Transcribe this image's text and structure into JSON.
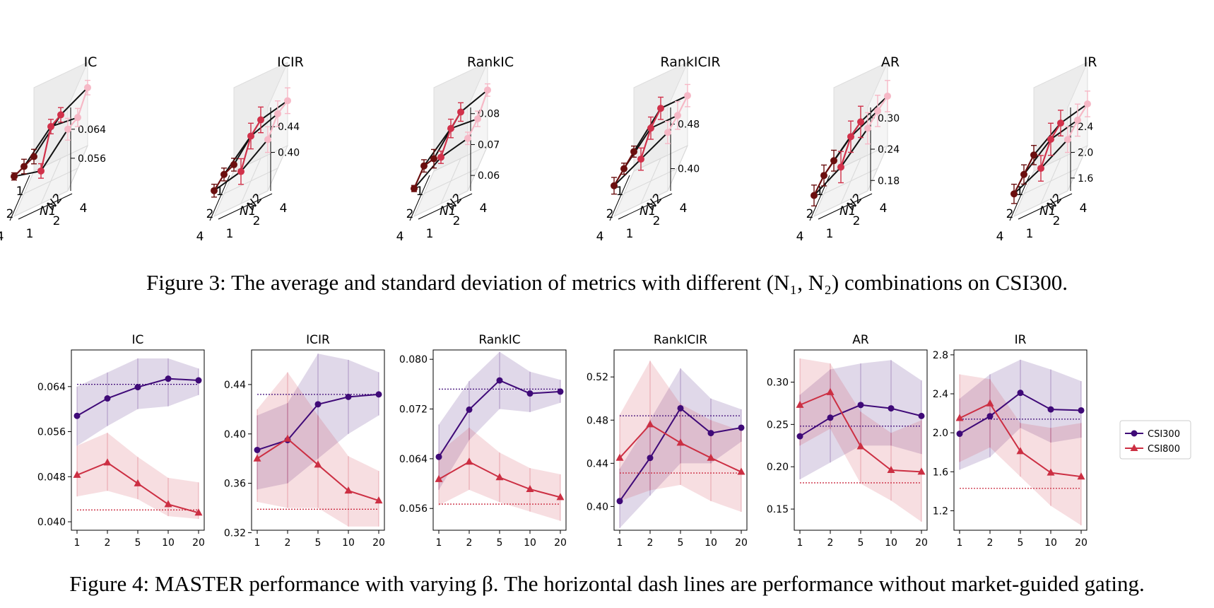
{
  "figure3": {
    "caption": "Figure 3: The average and standard deviation of metrics with different (N₁, N₂) combinations on CSI300.",
    "x_axis_label": "N1",
    "y_axis_label": "N2",
    "x_ticks": [
      "1",
      "2",
      "4"
    ],
    "y_ticks": [
      "1",
      "2",
      "4"
    ],
    "colors_by_N2": [
      "#6b0f0f",
      "#d1314a",
      "#f6b8c6"
    ]
  },
  "figure4": {
    "caption": "Figure 4: MASTER performance with varying β. The horizontal dash lines are performance without market-guided gating.",
    "legend": [
      {
        "name": "CSI300",
        "color": "#3f0a78",
        "marker": "circle"
      },
      {
        "name": "CSI800",
        "color": "#cc2f43",
        "marker": "triangle"
      }
    ]
  },
  "chart_data": [
    {
      "type": "scatter",
      "figure": "3",
      "title": "IC",
      "x_label": "N1",
      "y_label": "N2",
      "z_ticks": [
        "0.064",
        "0.056"
      ],
      "zlim": [
        0.047,
        0.07
      ],
      "points": [
        {
          "N1": 1,
          "N2": 1,
          "mean": 0.051,
          "std": 0.002
        },
        {
          "N1": 2,
          "N2": 1,
          "mean": 0.0545,
          "std": 0.002
        },
        {
          "N1": 4,
          "N2": 1,
          "mean": 0.058,
          "std": 0.001
        },
        {
          "N1": 1,
          "N2": 2,
          "mean": 0.059,
          "std": 0.002
        },
        {
          "N1": 2,
          "N2": 2,
          "mean": 0.062,
          "std": 0.002
        },
        {
          "N1": 4,
          "N2": 2,
          "mean": 0.056,
          "std": 0.002
        },
        {
          "N1": 1,
          "N2": 4,
          "mean": 0.063,
          "std": 0.002
        },
        {
          "N1": 2,
          "N2": 4,
          "mean": 0.061,
          "std": 0.0025
        },
        {
          "N1": 4,
          "N2": 4,
          "mean": 0.064,
          "std": 0.003
        }
      ]
    },
    {
      "type": "scatter",
      "figure": "3",
      "title": "ICIR",
      "x_label": "N1",
      "y_label": "N2",
      "z_ticks": [
        "0.44",
        "0.40"
      ],
      "zlim": [
        0.34,
        0.47
      ],
      "points": [
        {
          "N1": 1,
          "N2": 1,
          "mean": 0.35,
          "std": 0.01
        },
        {
          "N1": 2,
          "N2": 1,
          "mean": 0.37,
          "std": 0.01
        },
        {
          "N1": 4,
          "N2": 1,
          "mean": 0.38,
          "std": 0.01
        },
        {
          "N1": 1,
          "N2": 2,
          "mean": 0.4,
          "std": 0.02
        },
        {
          "N1": 2,
          "N2": 2,
          "mean": 0.41,
          "std": 0.02
        },
        {
          "N1": 4,
          "N2": 2,
          "mean": 0.39,
          "std": 0.02
        },
        {
          "N1": 1,
          "N2": 4,
          "mean": 0.41,
          "std": 0.02
        },
        {
          "N1": 2,
          "N2": 4,
          "mean": 0.425,
          "std": 0.02
        },
        {
          "N1": 4,
          "N2": 4,
          "mean": 0.42,
          "std": 0.02
        }
      ]
    },
    {
      "type": "scatter",
      "figure": "3",
      "title": "RankIC",
      "x_label": "N1",
      "y_label": "N2",
      "z_ticks": [
        "0.08",
        "0.07",
        "0.06"
      ],
      "zlim": [
        0.055,
        0.082
      ],
      "points": [
        {
          "N1": 1,
          "N2": 1,
          "mean": 0.059,
          "std": 0.003
        },
        {
          "N1": 2,
          "N2": 1,
          "mean": 0.064,
          "std": 0.002
        },
        {
          "N1": 4,
          "N2": 1,
          "mean": 0.064,
          "std": 0.001
        },
        {
          "N1": 1,
          "N2": 2,
          "mean": 0.07,
          "std": 0.003
        },
        {
          "N1": 2,
          "N2": 2,
          "mean": 0.072,
          "std": 0.003
        },
        {
          "N1": 4,
          "N2": 2,
          "mean": 0.07,
          "std": 0.002
        },
        {
          "N1": 1,
          "N2": 4,
          "mean": 0.073,
          "std": 0.002
        },
        {
          "N1": 2,
          "N2": 4,
          "mean": 0.071,
          "std": 0.0025
        },
        {
          "N1": 4,
          "N2": 4,
          "mean": 0.072,
          "std": 0.002
        }
      ]
    },
    {
      "type": "scatter",
      "figure": "3",
      "title": "RankICIR",
      "x_label": "N1",
      "y_label": "N2",
      "z_ticks": [
        "0.48",
        "0.40"
      ],
      "zlim": [
        0.36,
        0.51
      ],
      "points": [
        {
          "N1": 1,
          "N2": 1,
          "mean": 0.395,
          "std": 0.01
        },
        {
          "N1": 2,
          "N2": 1,
          "mean": 0.405,
          "std": 0.01
        },
        {
          "N1": 4,
          "N2": 1,
          "mean": 0.415,
          "std": 0.015
        },
        {
          "N1": 1,
          "N2": 2,
          "mean": 0.45,
          "std": 0.02
        },
        {
          "N1": 2,
          "N2": 2,
          "mean": 0.455,
          "std": 0.02
        },
        {
          "N1": 4,
          "N2": 2,
          "mean": 0.44,
          "std": 0.02
        },
        {
          "N1": 1,
          "N2": 4,
          "mean": 0.45,
          "std": 0.02
        },
        {
          "N1": 2,
          "N2": 4,
          "mean": 0.455,
          "std": 0.025
        },
        {
          "N1": 4,
          "N2": 4,
          "mean": 0.465,
          "std": 0.02
        }
      ]
    },
    {
      "type": "scatter",
      "figure": "3",
      "title": "AR",
      "x_label": "N1",
      "y_label": "N2",
      "z_ticks": [
        "0.30",
        "0.24",
        "0.18"
      ],
      "zlim": [
        0.16,
        0.32
      ],
      "points": [
        {
          "N1": 1,
          "N2": 1,
          "mean": 0.18,
          "std": 0.02
        },
        {
          "N1": 2,
          "N2": 1,
          "mean": 0.195,
          "std": 0.02
        },
        {
          "N1": 4,
          "N2": 1,
          "mean": 0.2,
          "std": 0.02
        },
        {
          "N1": 1,
          "N2": 2,
          "mean": 0.23,
          "std": 0.03
        },
        {
          "N1": 2,
          "N2": 2,
          "mean": 0.245,
          "std": 0.03
        },
        {
          "N1": 4,
          "N2": 2,
          "mean": 0.23,
          "std": 0.03
        },
        {
          "N1": 1,
          "N2": 4,
          "mean": 0.255,
          "std": 0.03
        },
        {
          "N1": 2,
          "N2": 4,
          "mean": 0.27,
          "std": 0.03
        },
        {
          "N1": 4,
          "N2": 4,
          "mean": 0.28,
          "std": 0.03
        }
      ]
    },
    {
      "type": "scatter",
      "figure": "3",
      "title": "IR",
      "x_label": "N1",
      "y_label": "N2",
      "z_ticks": [
        "2.4",
        "2.0",
        "1.6"
      ],
      "zlim": [
        1.4,
        2.7
      ],
      "points": [
        {
          "N1": 1,
          "N2": 1,
          "mean": 1.65,
          "std": 0.15
        },
        {
          "N1": 2,
          "N2": 1,
          "mean": 1.7,
          "std": 0.15
        },
        {
          "N1": 4,
          "N2": 1,
          "mean": 1.75,
          "std": 0.15
        },
        {
          "N1": 1,
          "N2": 2,
          "mean": 1.95,
          "std": 0.2
        },
        {
          "N1": 2,
          "N2": 2,
          "mean": 2.05,
          "std": 0.25
        },
        {
          "N1": 4,
          "N2": 2,
          "mean": 1.95,
          "std": 0.2
        },
        {
          "N1": 1,
          "N2": 4,
          "mean": 2.05,
          "std": 0.2
        },
        {
          "N1": 2,
          "N2": 4,
          "mean": 2.15,
          "std": 0.25
        },
        {
          "N1": 4,
          "N2": 4,
          "mean": 2.2,
          "std": 0.2
        }
      ]
    },
    {
      "type": "line",
      "figure": "4",
      "title": "IC",
      "categories": [
        "1",
        "2",
        "5",
        "10",
        "20"
      ],
      "ylim": [
        0.0385,
        0.0705
      ],
      "yticks": [
        "0.040",
        "0.048",
        "0.056",
        "0.064"
      ],
      "series": [
        {
          "name": "CSI300",
          "values": [
            0.0588,
            0.0619,
            0.0639,
            0.0654,
            0.0651
          ],
          "lower": [
            0.0535,
            0.057,
            0.06,
            0.0605,
            0.0625
          ],
          "upper": [
            0.064,
            0.0665,
            0.069,
            0.069,
            0.0672
          ],
          "baseline": 0.0644
        },
        {
          "name": "CSI800",
          "values": [
            0.0483,
            0.0505,
            0.0468,
            0.0431,
            0.0416
          ],
          "lower": [
            0.0445,
            0.0455,
            0.044,
            0.041,
            0.0405
          ],
          "upper": [
            0.0535,
            0.0558,
            0.0515,
            0.0478,
            0.047
          ],
          "baseline": 0.0421
        }
      ]
    },
    {
      "type": "line",
      "figure": "4",
      "title": "ICIR",
      "categories": [
        "1",
        "2",
        "5",
        "10",
        "20"
      ],
      "ylim": [
        0.322,
        0.468
      ],
      "yticks": [
        "0.32",
        "0.36",
        "0.40",
        "0.44"
      ],
      "series": [
        {
          "name": "CSI300",
          "values": [
            0.387,
            0.395,
            0.424,
            0.43,
            0.432
          ],
          "lower": [
            0.355,
            0.36,
            0.38,
            0.4,
            0.415
          ],
          "upper": [
            0.415,
            0.425,
            0.465,
            0.46,
            0.45
          ],
          "baseline": 0.432
        },
        {
          "name": "CSI800",
          "values": [
            0.38,
            0.396,
            0.375,
            0.354,
            0.346
          ],
          "lower": [
            0.345,
            0.34,
            0.34,
            0.325,
            0.325
          ],
          "upper": [
            0.42,
            0.45,
            0.415,
            0.382,
            0.37
          ],
          "baseline": 0.339
        }
      ]
    },
    {
      "type": "line",
      "figure": "4",
      "title": "RankIC",
      "categories": [
        "1",
        "2",
        "5",
        "10",
        "20"
      ],
      "ylim": [
        0.0525,
        0.0815
      ],
      "yticks": [
        "0.056",
        "0.064",
        "0.072",
        "0.080"
      ],
      "series": [
        {
          "name": "CSI300",
          "values": [
            0.0643,
            0.0719,
            0.0766,
            0.0745,
            0.0748
          ],
          "lower": [
            0.059,
            0.067,
            0.072,
            0.0715,
            0.073
          ],
          "upper": [
            0.0695,
            0.0765,
            0.0812,
            0.078,
            0.0767
          ],
          "baseline": 0.0752
        },
        {
          "name": "CSI800",
          "values": [
            0.0607,
            0.0635,
            0.061,
            0.0591,
            0.0578
          ],
          "lower": [
            0.0565,
            0.059,
            0.057,
            0.0555,
            0.054
          ],
          "upper": [
            0.065,
            0.069,
            0.065,
            0.0625,
            0.0615
          ],
          "baseline": 0.0567
        }
      ]
    },
    {
      "type": "line",
      "figure": "4",
      "title": "RankICIR",
      "categories": [
        "1",
        "2",
        "5",
        "10",
        "20"
      ],
      "ylim": [
        0.378,
        0.545
      ],
      "yticks": [
        "0.40",
        "0.44",
        "0.48",
        "0.52"
      ],
      "series": [
        {
          "name": "CSI300",
          "values": [
            0.405,
            0.445,
            0.491,
            0.468,
            0.473
          ],
          "lower": [
            0.38,
            0.41,
            0.44,
            0.44,
            0.46
          ],
          "upper": [
            0.435,
            0.48,
            0.528,
            0.5,
            0.49
          ],
          "baseline": 0.484
        },
        {
          "name": "CSI800",
          "values": [
            0.445,
            0.476,
            0.459,
            0.445,
            0.432
          ],
          "lower": [
            0.405,
            0.415,
            0.42,
            0.405,
            0.395
          ],
          "upper": [
            0.485,
            0.535,
            0.495,
            0.48,
            0.47
          ],
          "baseline": 0.431
        }
      ]
    },
    {
      "type": "line",
      "figure": "4",
      "title": "AR",
      "categories": [
        "1",
        "2",
        "5",
        "10",
        "20"
      ],
      "ylim": [
        0.125,
        0.338
      ],
      "yticks": [
        "0.15",
        "0.20",
        "0.25",
        "0.30"
      ],
      "series": [
        {
          "name": "CSI300",
          "values": [
            0.236,
            0.258,
            0.273,
            0.269,
            0.26
          ],
          "lower": [
            0.185,
            0.205,
            0.225,
            0.225,
            0.215
          ],
          "upper": [
            0.285,
            0.315,
            0.322,
            0.326,
            0.302
          ],
          "baseline": 0.248
        },
        {
          "name": "CSI800",
          "values": [
            0.273,
            0.288,
            0.224,
            0.196,
            0.194
          ],
          "lower": [
            0.225,
            0.245,
            0.18,
            0.16,
            0.135
          ],
          "upper": [
            0.328,
            0.322,
            0.265,
            0.24,
            0.255
          ],
          "baseline": 0.181
        }
      ]
    },
    {
      "type": "line",
      "figure": "4",
      "title": "IR",
      "categories": [
        "1",
        "2",
        "5",
        "10",
        "20"
      ],
      "ylim": [
        1.0,
        2.85
      ],
      "yticks": [
        "1.2",
        "1.6",
        "2.0",
        "2.4",
        "2.8"
      ],
      "series": [
        {
          "name": "CSI300",
          "values": [
            1.99,
            2.17,
            2.41,
            2.24,
            2.23
          ],
          "lower": [
            1.62,
            1.75,
            2.05,
            1.9,
            1.95
          ],
          "upper": [
            2.35,
            2.6,
            2.75,
            2.65,
            2.53
          ],
          "baseline": 2.14
        },
        {
          "name": "CSI800",
          "values": [
            2.15,
            2.3,
            1.81,
            1.59,
            1.55
          ],
          "lower": [
            1.7,
            1.85,
            1.55,
            1.25,
            1.05
          ],
          "upper": [
            2.6,
            2.55,
            2.1,
            2.05,
            2.1
          ],
          "baseline": 1.43
        }
      ]
    }
  ]
}
